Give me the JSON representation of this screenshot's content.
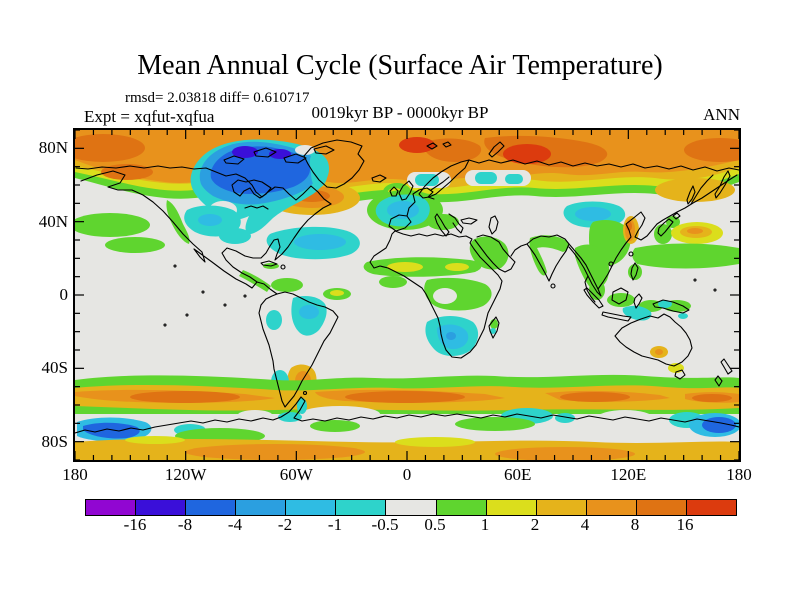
{
  "header": {
    "title": "Mean Annual Cycle (Surface Air Temperature)",
    "stats_line": "rmsd= 2.03818 diff= 0.610717",
    "experiment_label": "Expt = xqfut-xqfua",
    "period_label": "0019kyr BP - 0000kyr BP",
    "season_label": "ANN"
  },
  "chart_data": {
    "type": "heatmap",
    "subtype": "filled-contour-world-map",
    "projection": "equirectangular",
    "title": "Mean Annual Cycle (Surface Air Temperature)",
    "annotations": {
      "rmsd": "2.03818",
      "diff": "0.610717",
      "experiment": "xqfut-xqfua",
      "period": "0019kyr BP - 0000kyr BP",
      "season": "ANN"
    },
    "x_axis": {
      "ticks": [
        "180",
        "120W",
        "60W",
        "0",
        "60E",
        "120E",
        "180"
      ],
      "range_deg": [
        -180,
        180
      ],
      "minor_tick_deg": 10,
      "major_tick_deg": 60
    },
    "y_axis": {
      "ticks": [
        "80N",
        "40N",
        "0",
        "40S",
        "80S"
      ],
      "range_deg": [
        -90,
        90
      ],
      "minor_tick_deg": 10,
      "major_tick_deg": 40
    },
    "colorbar": {
      "boundary_labels": [
        "-16",
        "-8",
        "-4",
        "-2",
        "-1",
        "-0.5",
        "0.5",
        "1",
        "2",
        "4",
        "8",
        "16"
      ],
      "colors": [
        "#9106D2",
        "#3A0FD9",
        "#1F66DF",
        "#2B9FE0",
        "#2FBCE3",
        "#2ED3CB",
        "#E6E6E3",
        "#5FD52F",
        "#DBDE1C",
        "#E5B31B",
        "#E8921C",
        "#DF7313",
        "#DC3B0E"
      ]
    },
    "notable_regions": [
      {
        "region": "Arctic and subarctic (55N-90N)",
        "anomaly_degC": "+2 to +16, strongest over Siberia and Barents Sea"
      },
      {
        "region": "Canadian Arctic / Hudson Bay",
        "anomaly_degC": "-2 to -8 cold patch"
      },
      {
        "region": "Western Europe",
        "anomaly_degC": "-0.5 to -2"
      },
      {
        "region": "Central North America",
        "anomaly_degC": "-0.5 to -1"
      },
      {
        "region": "Subtropical North Atlantic",
        "anomaly_degC": "-0.5 to -1"
      },
      {
        "region": "North Atlantic near 50N",
        "anomaly_degC": "+2 to +8"
      },
      {
        "region": "Mongolia / northeast China",
        "anomaly_degC": "-0.5 to -1"
      },
      {
        "region": "Eastern China",
        "anomaly_degC": "+0.5 to +1"
      },
      {
        "region": "Korea",
        "anomaly_degC": "+2 to +8"
      },
      {
        "region": "Sahel and tropical Africa",
        "anomaly_degC": "+0.5 to +2"
      },
      {
        "region": "Southern Africa",
        "anomaly_degC": "-0.5 to -2"
      },
      {
        "region": "Interior Brazil",
        "anomaly_degC": "-0.5 to -1"
      },
      {
        "region": "Argentina",
        "anomaly_degC": "+2 to +4 with nearby -0.5 to -1"
      },
      {
        "region": "Southern Ocean 50S-65S",
        "anomaly_degC": "+1 to +8 circumpolar warm band"
      },
      {
        "region": "Ross Sea / East Antarctic coast",
        "anomaly_degC": "-2 to -4 blue patches"
      },
      {
        "region": "Antarctic interior",
        "anomaly_degC": "+1 to +4"
      },
      {
        "region": "Mid-latitude oceans",
        "anomaly_degC": "-0.5 to +0.5 near zero"
      }
    ]
  }
}
